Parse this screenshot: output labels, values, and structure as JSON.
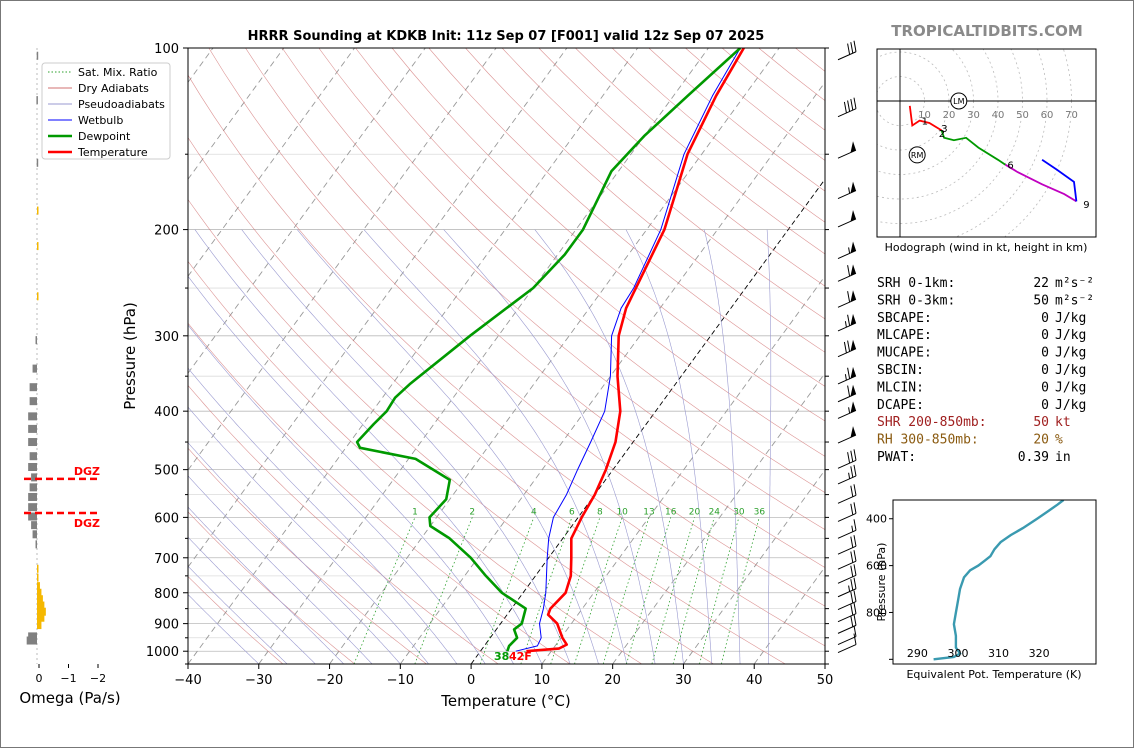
{
  "brand": "TROPICALTIDBITS.COM",
  "chart_data": [
    {
      "type": "line",
      "subtype": "skew-t log-p sounding",
      "title": "HRRR Sounding at KDKB Init: 11z Sep 07 [F001] valid 12z Sep 07 2025",
      "xlabel": "Temperature (°C)",
      "ylabel": "Pressure (hPa)",
      "xlim": [
        -40,
        50
      ],
      "ylim": [
        1050,
        100
      ],
      "y_scale": "log",
      "x_ticks": [
        "−40",
        "−30",
        "−20",
        "−10",
        "0",
        "10",
        "20",
        "30",
        "40",
        "50"
      ],
      "y_ticks": [
        "100",
        "200",
        "300",
        "400",
        "500",
        "600",
        "700",
        "800",
        "900",
        "1000"
      ],
      "legend": {
        "placement": "top-left",
        "entries": [
          {
            "label": "Sat. Mix. Ratio",
            "color": "#2ca02c",
            "style": "dotted"
          },
          {
            "label": "Dry Adiabats",
            "color": "#d07070",
            "style": "solid"
          },
          {
            "label": "Pseudoadiabats",
            "color": "#9a9ad0",
            "style": "solid"
          },
          {
            "label": "Wetbulb",
            "color": "#0000ff",
            "style": "solid"
          },
          {
            "label": "Dewpoint",
            "color": "#009900",
            "style": "solid"
          },
          {
            "label": "Temperature",
            "color": "#ff0000",
            "style": "solid"
          }
        ]
      },
      "mixing_ratio_labels": [
        "1",
        "2",
        "4",
        "6",
        "8",
        "10",
        "13",
        "16",
        "20",
        "24",
        "30",
        "36"
      ],
      "mixing_ratio_values": [
        1,
        2,
        4,
        6,
        8,
        10,
        13,
        16,
        20,
        24,
        30,
        36
      ],
      "surface_labels": {
        "dewpoint": "38",
        "temperature": "42F"
      },
      "series": [
        {
          "name": "Temperature",
          "color": "#ff0000",
          "points": [
            [
              1000,
              6.5
            ],
            [
              990,
              10.8
            ],
            [
              975,
              11.5
            ],
            [
              950,
              10.2
            ],
            [
              900,
              8
            ],
            [
              870,
              5.8
            ],
            [
              850,
              5.5
            ],
            [
              800,
              6
            ],
            [
              750,
              5
            ],
            [
              700,
              3.2
            ],
            [
              650,
              1.2
            ],
            [
              600,
              0.5
            ],
            [
              550,
              0
            ],
            [
              500,
              -1
            ],
            [
              450,
              -2.5
            ],
            [
              400,
              -5
            ],
            [
              350,
              -9
            ],
            [
              300,
              -13
            ],
            [
              270,
              -14.8
            ],
            [
              250,
              -15.5
            ],
            [
              200,
              -17.5
            ],
            [
              150,
              -22
            ],
            [
              120,
              -24
            ],
            [
              100,
              -25
            ]
          ]
        },
        {
          "name": "Wetbulb",
          "color": "#0000ff",
          "points": [
            [
              1000,
              5
            ],
            [
              980,
              7.5
            ],
            [
              950,
              7.2
            ],
            [
              900,
              5.5
            ],
            [
              850,
              4.5
            ],
            [
              800,
              3.2
            ],
            [
              700,
              -0.2
            ],
            [
              650,
              -2
            ],
            [
              600,
              -3.5
            ],
            [
              550,
              -4
            ],
            [
              500,
              -5
            ],
            [
              450,
              -6
            ],
            [
              400,
              -7.2
            ],
            [
              350,
              -10
            ],
            [
              300,
              -14
            ],
            [
              270,
              -15.5
            ],
            [
              250,
              -15.8
            ],
            [
              200,
              -18
            ],
            [
              150,
              -22.5
            ],
            [
              120,
              -24.5
            ],
            [
              100,
              -25.5
            ]
          ]
        },
        {
          "name": "Dewpoint",
          "color": "#009900",
          "points": [
            [
              1000,
              3.8
            ],
            [
              980,
              3.5
            ],
            [
              950,
              3.8
            ],
            [
              920,
              2.5
            ],
            [
              900,
              3
            ],
            [
              850,
              2
            ],
            [
              800,
              -3
            ],
            [
              750,
              -7
            ],
            [
              700,
              -11
            ],
            [
              650,
              -16
            ],
            [
              620,
              -20
            ],
            [
              600,
              -21
            ],
            [
              560,
              -20.5
            ],
            [
              520,
              -22
            ],
            [
              480,
              -29
            ],
            [
              460,
              -38
            ],
            [
              450,
              -39
            ],
            [
              420,
              -38.5
            ],
            [
              400,
              -38
            ],
            [
              380,
              -38.2
            ],
            [
              360,
              -37.5
            ],
            [
              300,
              -34
            ],
            [
              250,
              -30
            ],
            [
              220,
              -29
            ],
            [
              200,
              -29
            ],
            [
              160,
              -31
            ],
            [
              140,
              -30
            ],
            [
              120,
              -28
            ],
            [
              100,
              -25.5
            ]
          ]
        }
      ],
      "wind_barbs_kt": [
        {
          "p": 990,
          "speed": 10
        },
        {
          "p": 960,
          "speed": 10
        },
        {
          "p": 920,
          "speed": 20
        },
        {
          "p": 880,
          "speed": 20
        },
        {
          "p": 840,
          "speed": 20
        },
        {
          "p": 800,
          "speed": 25
        },
        {
          "p": 760,
          "speed": 20
        },
        {
          "p": 720,
          "speed": 20
        },
        {
          "p": 680,
          "speed": 20
        },
        {
          "p": 640,
          "speed": 15
        },
        {
          "p": 600,
          "speed": 20
        },
        {
          "p": 560,
          "speed": 20
        },
        {
          "p": 520,
          "speed": 25
        },
        {
          "p": 490,
          "speed": 30
        },
        {
          "p": 445,
          "speed": 50
        },
        {
          "p": 405,
          "speed": 55
        },
        {
          "p": 380,
          "speed": 60
        },
        {
          "p": 355,
          "speed": 65
        },
        {
          "p": 320,
          "speed": 70
        },
        {
          "p": 290,
          "speed": 65
        },
        {
          "p": 265,
          "speed": 60
        },
        {
          "p": 240,
          "speed": 60
        },
        {
          "p": 220,
          "speed": 55
        },
        {
          "p": 195,
          "speed": 50
        },
        {
          "p": 175,
          "speed": 55
        },
        {
          "p": 150,
          "speed": 50
        },
        {
          "p": 128,
          "speed": 40
        },
        {
          "p": 103,
          "speed": 30
        }
      ]
    },
    {
      "type": "bar",
      "subtype": "omega profile",
      "xlabel": "Omega (Pa/s)",
      "x_ticks": [
        "0",
        "−1",
        "−2"
      ],
      "xlim": [
        0.2,
        -2
      ],
      "dgz_label": "DGZ",
      "dgz_bounds_hpa": [
        518,
        590
      ],
      "values": [
        {
          "p": 960,
          "omega": 0.35
        },
        {
          "p": 945,
          "omega": 0.3
        },
        {
          "p": 905,
          "omega": -0.15
        },
        {
          "p": 880,
          "omega": -0.25
        },
        {
          "p": 860,
          "omega": -0.3
        },
        {
          "p": 840,
          "omega": -0.25
        },
        {
          "p": 820,
          "omega": -0.2
        },
        {
          "p": 800,
          "omega": -0.15
        },
        {
          "p": 780,
          "omega": -0.1
        },
        {
          "p": 755,
          "omega": -0.05
        },
        {
          "p": 730,
          "omega": -0.05
        },
        {
          "p": 665,
          "omega": 0.05
        },
        {
          "p": 640,
          "omega": 0.15
        },
        {
          "p": 618,
          "omega": 0.2
        },
        {
          "p": 598,
          "omega": 0.3
        },
        {
          "p": 577,
          "omega": 0.3
        },
        {
          "p": 555,
          "omega": 0.3
        },
        {
          "p": 535,
          "omega": 0.25
        },
        {
          "p": 515,
          "omega": 0.2
        },
        {
          "p": 495,
          "omega": 0.3
        },
        {
          "p": 475,
          "omega": 0.25
        },
        {
          "p": 450,
          "omega": 0.3
        },
        {
          "p": 428,
          "omega": 0.3
        },
        {
          "p": 408,
          "omega": 0.3
        },
        {
          "p": 385,
          "omega": 0.25
        },
        {
          "p": 365,
          "omega": 0.25
        },
        {
          "p": 340,
          "omega": 0.15
        },
        {
          "p": 305,
          "omega": 0.05
        },
        {
          "p": 258,
          "omega": -0.02
        },
        {
          "p": 213,
          "omega": -0.02
        },
        {
          "p": 186,
          "omega": -0.01
        },
        {
          "p": 155,
          "omega": 0.01
        },
        {
          "p": 122,
          "omega": 0.02
        },
        {
          "p": 103,
          "omega": 0.01
        }
      ],
      "colors": {
        "subsidence": "#808080",
        "ascent": "#f5b800"
      }
    },
    {
      "type": "line",
      "subtype": "hodograph",
      "caption": "Hodograph (wind in kt, height in km)",
      "ring_labels": [
        "10",
        "20",
        "30",
        "40",
        "50",
        "60",
        "70"
      ],
      "ring_values_kt": [
        10,
        20,
        30,
        40,
        50,
        60,
        70
      ],
      "markers": [
        "LM",
        "RM"
      ],
      "marker_points": {
        "LM": [
          24,
          0
        ],
        "RM": [
          7,
          -22
        ]
      },
      "height_labels": [
        "1",
        "2",
        "3",
        "6",
        "9"
      ],
      "segments": [
        {
          "color": "#ff0000",
          "points": [
            [
              4,
              -2
            ],
            [
              5,
              -10
            ],
            [
              8,
              -8
            ],
            [
              12,
              -9
            ],
            [
              17,
              -12
            ]
          ]
        },
        {
          "color": "#009900",
          "points": [
            [
              17,
              -12
            ],
            [
              18,
              -15
            ],
            [
              22,
              -16
            ],
            [
              27,
              -15
            ],
            [
              32,
              -19
            ],
            [
              40,
              -24
            ],
            [
              43,
              -26
            ]
          ]
        },
        {
          "color": "#c000c0",
          "points": [
            [
              43,
              -26
            ],
            [
              48,
              -29
            ],
            [
              58,
              -34
            ],
            [
              67,
              -38
            ],
            [
              72,
              -41
            ]
          ]
        },
        {
          "color": "#0000ff",
          "points": [
            [
              72,
              -41
            ],
            [
              71,
              -33
            ],
            [
              64,
              -28
            ],
            [
              58,
              -24
            ]
          ]
        }
      ],
      "label_points": {
        "1": [
          8,
          -8
        ],
        "2": [
          15,
          -13
        ],
        "3": [
          16,
          -11
        ],
        "6": [
          43,
          -26
        ],
        "9": [
          74,
          -42
        ]
      }
    },
    {
      "type": "line",
      "subtype": "theta-e profile",
      "xlabel": "Equivalent Pot. Temperature (K)",
      "ylabel": "Pressure (hPa)",
      "x_ticks": [
        "290",
        "300",
        "310",
        "320"
      ],
      "y_ticks": [
        "400",
        "600",
        "800"
      ],
      "xlim": [
        284,
        334
      ],
      "ylim": [
        1020,
        320
      ],
      "color": "#3a9ab0",
      "points": [
        [
          1000,
          294
        ],
        [
          990,
          299
        ],
        [
          975,
          300.5
        ],
        [
          950,
          299.5
        ],
        [
          900,
          299.5
        ],
        [
          850,
          299
        ],
        [
          800,
          299.5
        ],
        [
          750,
          300
        ],
        [
          700,
          300.5
        ],
        [
          650,
          301.5
        ],
        [
          620,
          303
        ],
        [
          600,
          305
        ],
        [
          580,
          306.5
        ],
        [
          560,
          308
        ],
        [
          530,
          309
        ],
        [
          500,
          310.5
        ],
        [
          470,
          313
        ],
        [
          440,
          316
        ],
        [
          400,
          319.5
        ],
        [
          370,
          322
        ],
        [
          340,
          324.5
        ],
        [
          320,
          326
        ]
      ]
    }
  ],
  "indices": [
    {
      "label": "SRH 0-1km:",
      "value": "22",
      "unit": "m²s⁻²",
      "color": "#000000"
    },
    {
      "label": "SRH 0-3km:",
      "value": "50",
      "unit": "m²s⁻²",
      "color": "#000000"
    },
    {
      "label": "SBCAPE:",
      "value": "0",
      "unit": "J/kg",
      "color": "#000000"
    },
    {
      "label": "MLCAPE:",
      "value": "0",
      "unit": "J/kg",
      "color": "#000000"
    },
    {
      "label": "MUCAPE:",
      "value": "0",
      "unit": "J/kg",
      "color": "#000000"
    },
    {
      "label": "SBCIN:",
      "value": "0",
      "unit": "J/kg",
      "color": "#000000"
    },
    {
      "label": "MLCIN:",
      "value": "0",
      "unit": "J/kg",
      "color": "#000000"
    },
    {
      "label": "DCAPE:",
      "value": "0",
      "unit": "J/kg",
      "color": "#000000"
    },
    {
      "label": "SHR 200-850mb:",
      "value": "50",
      "unit": "kt",
      "color": "#a02020"
    },
    {
      "label": "RH 300-850mb:",
      "value": "20",
      "unit": "%",
      "color": "#8a5a10"
    },
    {
      "label": "PWAT:",
      "value": "0.39",
      "unit": "in",
      "color": "#000000"
    }
  ]
}
